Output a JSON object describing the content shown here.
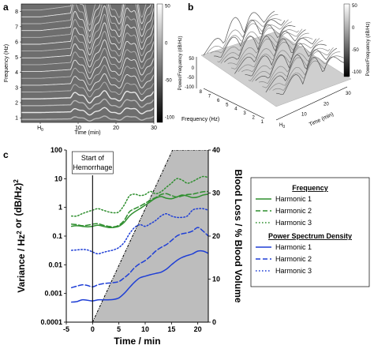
{
  "colors": {
    "green": "#2f8f2f",
    "blue": "#1f3fd6",
    "gray_fill": "#bdbdbd"
  },
  "panel_a": {
    "letter": "a",
    "ylabel": "Frequency (Hz)",
    "xlabel": "Time (min)",
    "yticks": [
      "1",
      "2",
      "3",
      "4",
      "5",
      "6",
      "7",
      "8"
    ],
    "xticks": [
      "H0",
      "10",
      "20",
      "30"
    ],
    "colorbar_ticks": [
      "50",
      "0",
      "-50",
      "-100"
    ],
    "colorbar_label": "Power/Frequency (dB/Hz)"
  },
  "panel_b": {
    "letter": "b",
    "zticks": [
      "50",
      "0",
      "-50",
      "-100"
    ],
    "freq_ticks": [
      "1",
      "2",
      "3",
      "4",
      "5",
      "6",
      "7",
      "8"
    ],
    "time_ticks": [
      "H0",
      "10",
      "20",
      "30"
    ],
    "freq_label": "Frequency (Hz)",
    "time_label": "Time (min)",
    "colorbar_ticks": [
      "50",
      "0",
      "-50",
      "-100"
    ],
    "colorbar_label": "Power/Frequency (dB/Hz)"
  },
  "chart_data": {
    "type": "line",
    "letter": "c",
    "xlabel": "Time / min",
    "ylabel_left": "Variance / Hz² or (dB/Hz)²",
    "ylabel_right": "Blood Loss / % Blood Volume",
    "xlim": [
      -5,
      22
    ],
    "ylim_left": [
      0.0001,
      100
    ],
    "ylim_right": [
      0,
      40
    ],
    "y_scale_left": "log",
    "xticks": [
      "-5",
      "0",
      "5",
      "10",
      "15",
      "20"
    ],
    "yticks_left": [
      "0.0001",
      "0.001",
      "0.01",
      "0.1",
      "1",
      "10",
      "100"
    ],
    "yticks_right": [
      "0",
      "10",
      "20",
      "30",
      "40"
    ],
    "annotation": "Start of Hemorrhage",
    "hemorrhage_start": 0,
    "blood_loss": {
      "x": [
        0,
        15.2,
        22
      ],
      "y": [
        0,
        40,
        40
      ]
    },
    "legend_groups": [
      {
        "title": "Frequency",
        "color": "green",
        "items": [
          "Harmonic 1",
          "Harmonic 2",
          "Harmonic 3"
        ]
      },
      {
        "title": "Power Spectrum Density",
        "color": "blue",
        "items": [
          "Harmonic 1",
          "Harmonic 2",
          "Harmonic 3"
        ]
      }
    ],
    "series": [
      {
        "group": "Frequency",
        "harmonic": 1,
        "color": "green",
        "dash": "solid",
        "x": [
          -4,
          -3,
          -2,
          -1,
          0,
          1,
          2,
          3,
          4,
          5,
          6,
          7,
          8,
          9,
          10,
          11,
          12,
          13,
          14,
          15,
          16,
          17,
          18,
          19,
          20,
          21,
          22
        ],
        "y": [
          0.22,
          0.23,
          0.22,
          0.21,
          0.22,
          0.24,
          0.22,
          0.2,
          0.2,
          0.22,
          0.3,
          0.5,
          0.7,
          0.9,
          1.2,
          1.6,
          2.1,
          2.4,
          2.1,
          2.0,
          2.3,
          2.7,
          2.5,
          2.2,
          2.3,
          2.7,
          2.9
        ]
      },
      {
        "group": "Frequency",
        "harmonic": 2,
        "color": "green",
        "dash": "dashed",
        "x": [
          -4,
          -3,
          -2,
          -1,
          0,
          1,
          2,
          3,
          4,
          5,
          6,
          7,
          8,
          9,
          10,
          11,
          12,
          13,
          14,
          15,
          16,
          17,
          18,
          19,
          20,
          21,
          22
        ],
        "y": [
          0.26,
          0.25,
          0.23,
          0.24,
          0.26,
          0.27,
          0.24,
          0.22,
          0.21,
          0.24,
          0.35,
          0.7,
          0.9,
          1.1,
          1.4,
          1.8,
          2.2,
          2.8,
          3.0,
          2.6,
          2.3,
          2.5,
          2.8,
          2.9,
          3.2,
          3.5,
          3.6
        ]
      },
      {
        "group": "Frequency",
        "harmonic": 3,
        "color": "green",
        "dash": "dotted",
        "x": [
          -4,
          -3,
          -2,
          -1,
          0,
          1,
          2,
          3,
          4,
          5,
          6,
          7,
          8,
          9,
          10,
          11,
          12,
          13,
          14,
          15,
          16,
          17,
          18,
          19,
          20,
          21,
          22
        ],
        "y": [
          0.5,
          0.5,
          0.6,
          0.7,
          0.8,
          0.9,
          0.8,
          0.7,
          0.65,
          0.7,
          1.2,
          2.5,
          2.9,
          2.6,
          2.8,
          3.6,
          3.0,
          3.5,
          5.0,
          7.0,
          10.0,
          9.0,
          7.0,
          8.0,
          10.0,
          12.0,
          11.0
        ]
      },
      {
        "group": "Power Spectrum Density",
        "harmonic": 1,
        "color": "blue",
        "dash": "solid",
        "x": [
          -4,
          -3,
          -2,
          -1,
          0,
          1,
          2,
          3,
          4,
          5,
          6,
          7,
          8,
          9,
          10,
          11,
          12,
          13,
          14,
          15,
          16,
          17,
          18,
          19,
          20,
          21,
          22
        ],
        "y": [
          0.0005,
          0.00052,
          0.0006,
          0.00058,
          0.00055,
          0.0006,
          0.0006,
          0.0006,
          0.00062,
          0.0007,
          0.001,
          0.0016,
          0.0025,
          0.0035,
          0.004,
          0.0045,
          0.005,
          0.0055,
          0.007,
          0.01,
          0.014,
          0.018,
          0.021,
          0.024,
          0.03,
          0.03,
          0.025
        ]
      },
      {
        "group": "Power Spectrum Density",
        "harmonic": 2,
        "color": "blue",
        "dash": "dashed",
        "x": [
          -4,
          -3,
          -2,
          -1,
          0,
          1,
          2,
          3,
          4,
          5,
          6,
          7,
          8,
          9,
          10,
          11,
          12,
          13,
          14,
          15,
          16,
          17,
          18,
          19,
          20,
          21,
          22
        ],
        "y": [
          0.0016,
          0.0018,
          0.002,
          0.0019,
          0.0017,
          0.002,
          0.0022,
          0.0023,
          0.0024,
          0.0026,
          0.0035,
          0.005,
          0.008,
          0.011,
          0.014,
          0.02,
          0.03,
          0.04,
          0.05,
          0.07,
          0.1,
          0.12,
          0.13,
          0.15,
          0.2,
          0.15,
          0.1
        ]
      },
      {
        "group": "Power Spectrum Density",
        "harmonic": 3,
        "color": "blue",
        "dash": "dotted",
        "x": [
          -4,
          -3,
          -2,
          -1,
          0,
          1,
          2,
          3,
          4,
          5,
          6,
          7,
          8,
          9,
          10,
          11,
          12,
          13,
          14,
          15,
          16,
          17,
          18,
          19,
          20,
          21,
          22
        ],
        "y": [
          0.032,
          0.033,
          0.034,
          0.033,
          0.028,
          0.024,
          0.027,
          0.03,
          0.033,
          0.04,
          0.06,
          0.12,
          0.2,
          0.25,
          0.22,
          0.27,
          0.35,
          0.5,
          0.6,
          0.5,
          0.45,
          0.45,
          0.5,
          0.8,
          0.9,
          0.9,
          0.8
        ]
      }
    ]
  }
}
